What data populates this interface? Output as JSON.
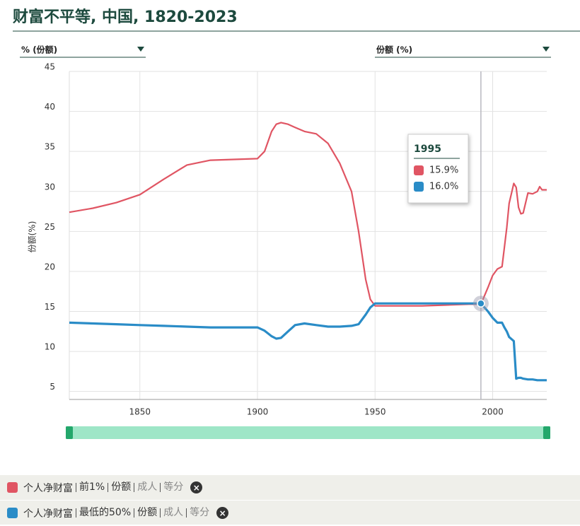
{
  "chart_data": {
    "type": "line",
    "title": "财富不平等, 中国, 1820-2023",
    "y_axis_label": "份额(%)",
    "controls": {
      "left_dropdown": "% (份额)",
      "right_dropdown": "份额 (%)"
    },
    "x": [
      1820,
      1830,
      1840,
      1850,
      1860,
      1870,
      1880,
      1890,
      1900,
      1903,
      1906,
      1908,
      1910,
      1913,
      1916,
      1920,
      1925,
      1930,
      1935,
      1940,
      1943,
      1946,
      1948,
      1950,
      1960,
      1970,
      1980,
      1990,
      1995,
      1998,
      2000,
      2002,
      2004,
      2005,
      2006,
      2007,
      2009,
      2010,
      2011,
      2012,
      2013,
      2015,
      2017,
      2019,
      2020,
      2021,
      2023
    ],
    "series": [
      {
        "name": "个人净财富",
        "details": [
          "前1%",
          "份额",
          "成人",
          "等分"
        ],
        "color": "#e05563",
        "values": [
          27.4,
          27.9,
          28.6,
          29.6,
          31.5,
          33.3,
          33.9,
          34.0,
          34.1,
          35.0,
          37.5,
          38.4,
          38.6,
          38.4,
          38.0,
          37.5,
          37.2,
          36.0,
          33.5,
          30.0,
          25.0,
          19.0,
          16.5,
          15.7,
          15.7,
          15.7,
          15.8,
          15.9,
          15.9,
          18.0,
          19.5,
          20.3,
          20.6,
          23.0,
          25.5,
          28.5,
          31.0,
          30.5,
          28.0,
          27.2,
          27.3,
          29.8,
          29.7,
          30.0,
          30.6,
          30.2,
          30.2
        ]
      },
      {
        "name": "个人净财富",
        "details": [
          "最低的50%",
          "份额",
          "成人",
          "等分"
        ],
        "color": "#2a8cc7",
        "values": [
          13.6,
          13.5,
          13.4,
          13.3,
          13.2,
          13.1,
          13.0,
          13.0,
          13.0,
          12.6,
          11.9,
          11.6,
          11.7,
          12.5,
          13.3,
          13.5,
          13.3,
          13.1,
          13.1,
          13.2,
          13.4,
          14.6,
          15.5,
          16.0,
          16.0,
          16.0,
          16.0,
          16.0,
          16.0,
          15.0,
          14.2,
          13.6,
          13.6,
          13.0,
          12.5,
          11.8,
          11.3,
          6.6,
          6.7,
          6.7,
          6.6,
          6.5,
          6.5,
          6.4,
          6.4,
          6.4,
          6.4
        ]
      }
    ],
    "xlim": [
      1820,
      2023
    ],
    "xticks": [
      1850,
      1900,
      1950,
      2000
    ],
    "ylim": [
      4,
      45
    ],
    "yticks": [
      5,
      10,
      15,
      20,
      25,
      30,
      35,
      40,
      45
    ],
    "grid": true,
    "tooltip": {
      "x": 1995,
      "values": [
        15.9,
        16.0
      ],
      "value_labels": [
        "15.9%",
        "16.0%"
      ]
    }
  }
}
